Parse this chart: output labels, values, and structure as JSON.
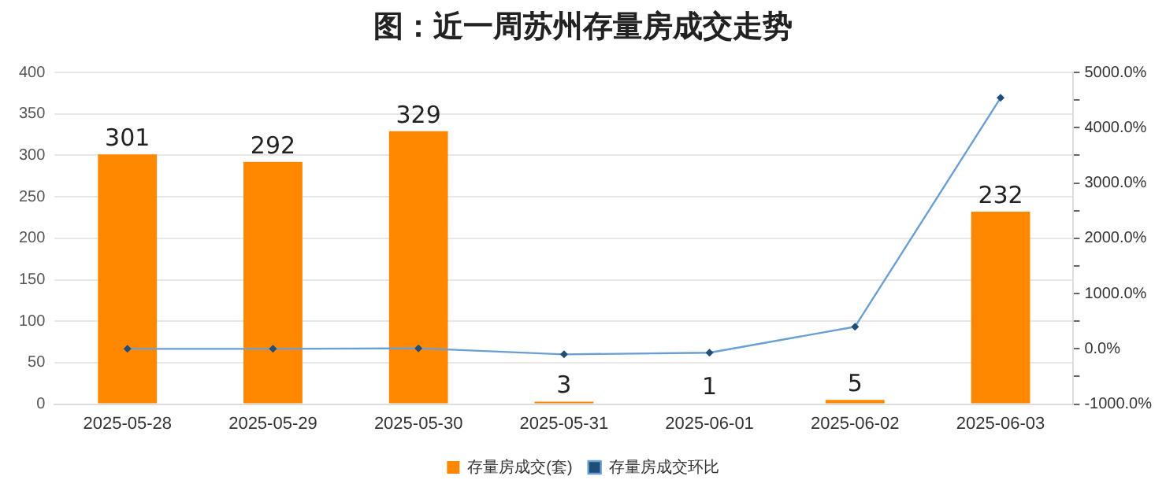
{
  "chart_data": {
    "type": "bar",
    "title": "图：近一周苏州存量房成交走势",
    "categories": [
      "2025-05-28",
      "2025-05-29",
      "2025-05-30",
      "2025-05-31",
      "2025-06-01",
      "2025-06-02",
      "2025-06-03"
    ],
    "series": [
      {
        "name": "存量房成交(套)",
        "color": "#ff8800",
        "values": [
          301,
          292,
          329,
          3,
          1,
          5,
          232
        ],
        "value_labels": [
          "301",
          "292",
          "329",
          "3",
          "1",
          "5",
          "232"
        ]
      },
      {
        "name": "存量房成交环比",
        "type": "line",
        "axis": "y2",
        "color": "#6a9fd4",
        "values": [
          0,
          0,
          10,
          -100,
          -70,
          400,
          4540
        ]
      }
    ],
    "ylim": [
      0,
      400
    ],
    "yticks": [
      0,
      50,
      100,
      150,
      200,
      250,
      300,
      350,
      400
    ],
    "y2lim": [
      -1000,
      5000
    ],
    "y2ticks": [
      {
        "value": -1000,
        "label": "-1000.0%"
      },
      {
        "value": -500,
        "label": null
      },
      {
        "value": 0,
        "label": "0.0%"
      },
      {
        "value": 500,
        "label": null
      },
      {
        "value": 1000,
        "label": "1000.0%"
      },
      {
        "value": 1500,
        "label": null
      },
      {
        "value": 2000,
        "label": "2000.0%"
      },
      {
        "value": 2500,
        "label": null
      },
      {
        "value": 3000,
        "label": "3000.0%"
      },
      {
        "value": 3500,
        "label": null
      },
      {
        "value": 4000,
        "label": "4000.0%"
      },
      {
        "value": 4500,
        "label": null
      },
      {
        "value": 5000,
        "label": "5000.0%"
      }
    ],
    "grid": "y",
    "legend": "bottom",
    "marker": "diamond",
    "line_style": "solid"
  }
}
